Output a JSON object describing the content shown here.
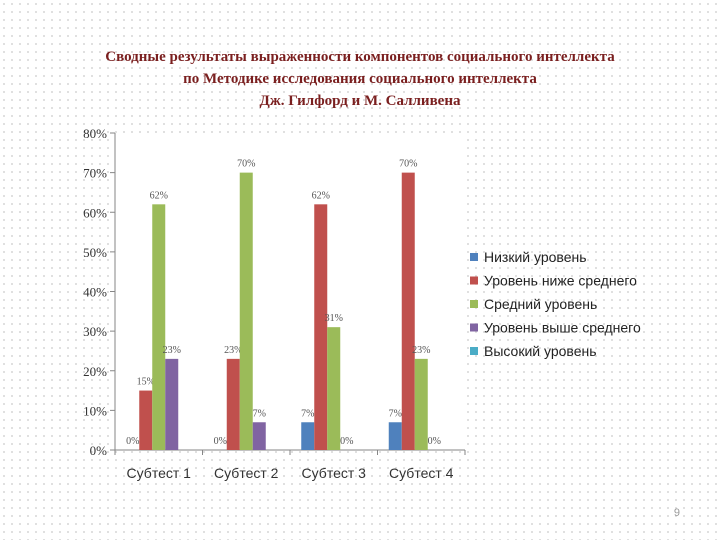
{
  "slide": {
    "title_lines": [
      "Сводные результаты выраженности компонентов социального интеллекта",
      "по Методике исследования социального интеллекта",
      "Дж. Гилфорд и М. Салливена"
    ],
    "page_number": "9"
  },
  "chart_data": {
    "type": "bar",
    "categories": [
      "Субтест 1",
      "Субтест 2",
      "Субтест 3",
      "Субтест 4"
    ],
    "series": [
      {
        "name": "Низкий уровень",
        "color": "#4f81bd",
        "values": [
          0,
          0,
          7,
          7
        ],
        "labels": [
          "0%",
          "0%",
          "7%",
          "7%"
        ]
      },
      {
        "name": "Уровень ниже среднего",
        "color": "#c0504d",
        "values": [
          15,
          23,
          62,
          70
        ],
        "labels": [
          "15%",
          "23%",
          "62%",
          "70%"
        ]
      },
      {
        "name": "Средний уровень",
        "color": "#9bbb59",
        "values": [
          62,
          70,
          31,
          23
        ],
        "labels": [
          "62%",
          "70%",
          "31%",
          "23%"
        ]
      },
      {
        "name": "Уровень выше среднего",
        "color": "#8064a2",
        "values": [
          23,
          7,
          0,
          0
        ],
        "labels": [
          "23%",
          "7%",
          "0%",
          "0%"
        ]
      },
      {
        "name": "Высокий уровень",
        "color": "#4bacc6",
        "values": [
          0,
          0,
          0,
          0
        ],
        "labels": [
          "",
          "",
          "",
          ""
        ]
      }
    ],
    "ylim": [
      0,
      80
    ],
    "yticks": [
      0,
      10,
      20,
      30,
      40,
      50,
      60,
      70,
      80
    ],
    "ytick_labels": [
      "0%",
      "10%",
      "20%",
      "30%",
      "40%",
      "50%",
      "60%",
      "70%",
      "80%"
    ],
    "grid": false,
    "legend_position": "right"
  }
}
